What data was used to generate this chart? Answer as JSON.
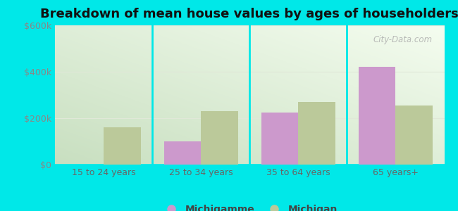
{
  "title": "Breakdown of mean house values by ages of householders",
  "categories": [
    "15 to 24 years",
    "25 to 34 years",
    "35 to 64 years",
    "65 years+"
  ],
  "michigamme_values": [
    0,
    100000,
    225000,
    420000
  ],
  "michigan_values": [
    160000,
    230000,
    270000,
    255000
  ],
  "michigamme_color": "#cc99cc",
  "michigan_color": "#bbc99a",
  "ylim": [
    0,
    600000
  ],
  "ytick_labels": [
    "$0",
    "$200k",
    "$400k",
    "$600k"
  ],
  "ytick_values": [
    0,
    200000,
    400000,
    600000
  ],
  "background_color": "#00e8e8",
  "plot_bg_topleft": "#c8dfc0",
  "plot_bg_bottomright": "#f5fdf0",
  "watermark": "City-Data.com",
  "legend_labels": [
    "Michigamme",
    "Michigan"
  ],
  "bar_width": 0.38,
  "title_fontsize": 13,
  "tick_fontsize": 9,
  "legend_fontsize": 10,
  "grid_color": "#e0e8d8",
  "separator_color": "#00e8e8"
}
